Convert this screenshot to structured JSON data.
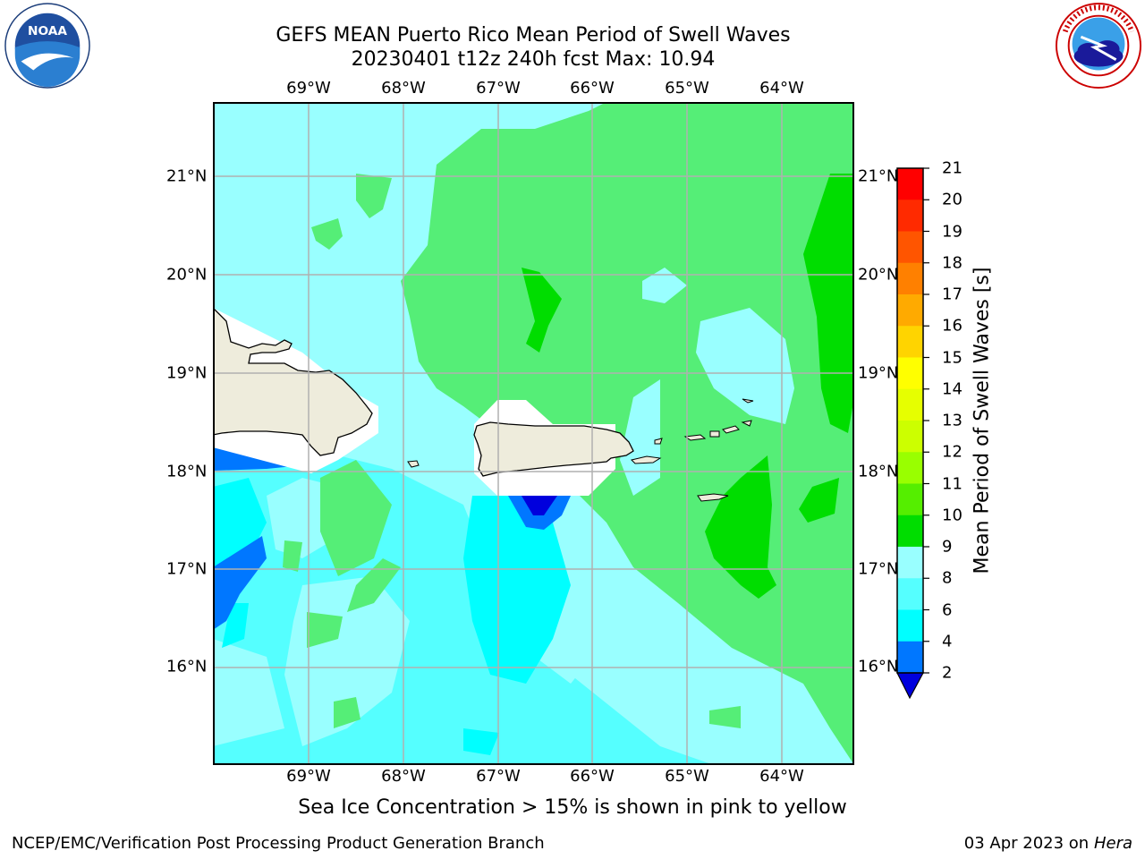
{
  "header": {
    "title_line1": "GEFS MEAN Puerto Rico Mean Period of Swell Waves",
    "title_line2": "20230401 t12z 240h fcst   Max: 10.94"
  },
  "logos": {
    "left": {
      "icon": "noaa-logo",
      "text": "NOAA",
      "ring_text": "NATIONAL OCEANIC AND ATMOSPHERIC ADMINISTRATION · U.S. DEPARTMENT OF COMMERCE"
    },
    "right": {
      "icon": "nws-logo",
      "ring_text": "NATIONAL WEATHER SERVICE"
    }
  },
  "map": {
    "region": "Puerto Rico",
    "lon_labels": [
      "69°W",
      "68°W",
      "67°W",
      "66°W",
      "65°W",
      "64°W"
    ],
    "lat_labels": [
      "21°N",
      "20°N",
      "19°N",
      "18°N",
      "17°N",
      "16°N"
    ],
    "land_color": "#eeecdc",
    "masked_color": "#ffffff",
    "grid_color": "#b0b0b0"
  },
  "colorbar": {
    "label": "Mean Period of Swell Waves [s]",
    "ticks": [
      "21",
      "20",
      "19",
      "18",
      "17",
      "16",
      "15",
      "14",
      "13",
      "12",
      "11",
      "10",
      "9",
      "8",
      "6",
      "4",
      "2"
    ],
    "colors": [
      "#ff0000",
      "#ff2a00",
      "#ff5500",
      "#ff8000",
      "#ffaa00",
      "#ffd400",
      "#ffff00",
      "#e6ff00",
      "#ccff00",
      "#99ff00",
      "#55ee00",
      "#00dd00",
      "#55ee77",
      "#99ffff",
      "#55ffff",
      "#00ffff",
      "#0077ff",
      "#0000dd"
    ]
  },
  "footer": {
    "note": "Sea Ice Concentration > 15% is shown in pink to yellow",
    "left": "NCEP/EMC/Verification Post Processing Product Generation Branch",
    "right_date": "03 Apr 2023 on ",
    "right_host": "Hera"
  }
}
